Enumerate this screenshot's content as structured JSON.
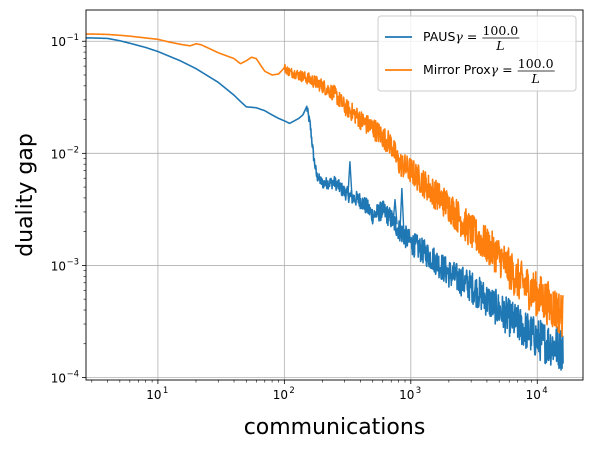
{
  "chart_data": {
    "type": "line",
    "title": "",
    "xlabel": "communications",
    "ylabel": "duality gap",
    "xscale": "log",
    "yscale": "log",
    "xlim": [
      2.7,
      23000
    ],
    "ylim": [
      9.5e-05,
      0.19
    ],
    "x_ticks": [
      {
        "value": 10,
        "label": "10",
        "exp": "1"
      },
      {
        "value": 100,
        "label": "10",
        "exp": "2"
      },
      {
        "value": 1000,
        "label": "10",
        "exp": "3"
      },
      {
        "value": 10000,
        "label": "10",
        "exp": "4"
      }
    ],
    "y_ticks": [
      {
        "value": 0.0001,
        "label": "10",
        "exp": "−4"
      },
      {
        "value": 0.001,
        "label": "10",
        "exp": "−3"
      },
      {
        "value": 0.01,
        "label": "10",
        "exp": "−2"
      },
      {
        "value": 0.1,
        "label": "10",
        "exp": "−1"
      }
    ],
    "grid": true,
    "legend_position": "top-right",
    "series": [
      {
        "name_prefix": "PAUS ",
        "gamma_numerator": "100.0",
        "gamma_denominator": "L",
        "color": "#1f77b4",
        "noise_start": 150,
        "x": [
          2.7,
          3,
          4,
          5,
          6,
          8,
          10,
          15,
          20,
          30,
          40,
          45,
          50,
          60,
          70,
          80,
          90,
          100,
          110,
          120,
          130,
          140,
          150,
          160,
          170,
          180,
          200,
          250,
          300,
          350,
          400,
          450,
          500,
          600,
          700,
          800,
          1000,
          1500,
          2000,
          3000,
          5000,
          7000,
          10000,
          16000
        ],
        "y": [
          0.107,
          0.107,
          0.106,
          0.101,
          0.096,
          0.088,
          0.081,
          0.067,
          0.057,
          0.043,
          0.033,
          0.029,
          0.026,
          0.0255,
          0.024,
          0.022,
          0.0205,
          0.0195,
          0.0185,
          0.0195,
          0.0205,
          0.022,
          0.026,
          0.018,
          0.0095,
          0.0063,
          0.0054,
          0.0055,
          0.0045,
          0.004,
          0.0038,
          0.0033,
          0.0028,
          0.0031,
          0.0026,
          0.0021,
          0.0016,
          0.00115,
          0.00085,
          0.00065,
          0.0004,
          0.0003,
          0.00022,
          0.00018
        ],
        "spikes": [
          [
            330,
            0.0085
          ],
          [
            850,
            0.0049
          ],
          [
            750,
            0.0039
          ]
        ]
      },
      {
        "name_prefix": "Mirror Prox ",
        "gamma_numerator": "100.0",
        "gamma_denominator": "L",
        "color": "#ff7f0e",
        "noise_start": 100,
        "x": [
          2.7,
          3,
          4,
          5,
          6,
          8,
          10,
          12,
          15,
          18,
          20,
          22,
          25,
          30,
          35,
          40,
          45,
          50,
          55,
          60,
          65,
          70,
          80,
          90,
          100,
          110,
          120,
          130,
          150,
          170,
          200,
          250,
          300,
          350,
          400,
          450,
          500,
          600,
          700,
          800,
          1000,
          1500,
          2000,
          3000,
          5000,
          7000,
          10000,
          16000
        ],
        "y": [
          0.116,
          0.116,
          0.115,
          0.113,
          0.111,
          0.107,
          0.104,
          0.099,
          0.094,
          0.091,
          0.095,
          0.093,
          0.087,
          0.079,
          0.074,
          0.07,
          0.063,
          0.067,
          0.072,
          0.07,
          0.061,
          0.054,
          0.05,
          0.051,
          0.058,
          0.053,
          0.052,
          0.05,
          0.047,
          0.044,
          0.04,
          0.034,
          0.026,
          0.023,
          0.02,
          0.018,
          0.017,
          0.014,
          0.012,
          0.0082,
          0.007,
          0.0045,
          0.0034,
          0.002,
          0.0012,
          0.00075,
          0.00055,
          0.00036
        ]
      }
    ]
  }
}
